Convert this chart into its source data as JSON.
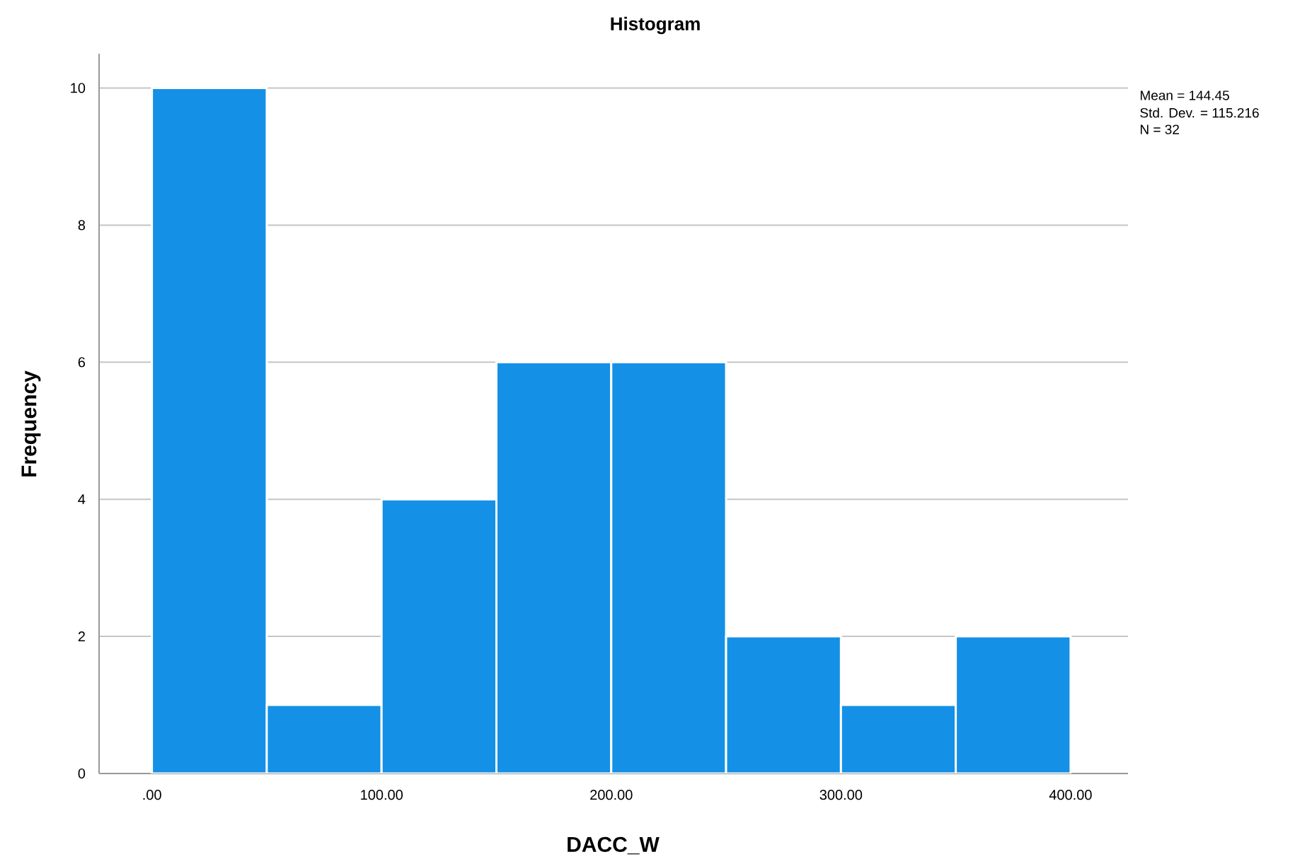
{
  "chart_data": {
    "type": "histogram",
    "title": "Histogram",
    "xlabel": "DACC_W",
    "ylabel": "Frequency",
    "bins": [
      0,
      50,
      100,
      150,
      200,
      250,
      300,
      350,
      400
    ],
    "values": [
      10,
      1,
      4,
      6,
      6,
      2,
      1,
      2
    ],
    "color": "#1490e6",
    "xlim": [
      -23,
      425
    ],
    "xticks": [
      {
        "value": 0,
        "label": ".00"
      },
      {
        "value": 100,
        "label": "100.00"
      },
      {
        "value": 200,
        "label": "200.00"
      },
      {
        "value": 300,
        "label": "300.00"
      },
      {
        "value": 400,
        "label": "400.00"
      }
    ],
    "ylim": [
      0,
      10.5
    ],
    "yticks": [
      0,
      2,
      4,
      6,
      8,
      10
    ],
    "grid": "y",
    "annotations": [
      "Mean = 144.45",
      "Std. Dev. = 115.216",
      "N = 32"
    ]
  }
}
